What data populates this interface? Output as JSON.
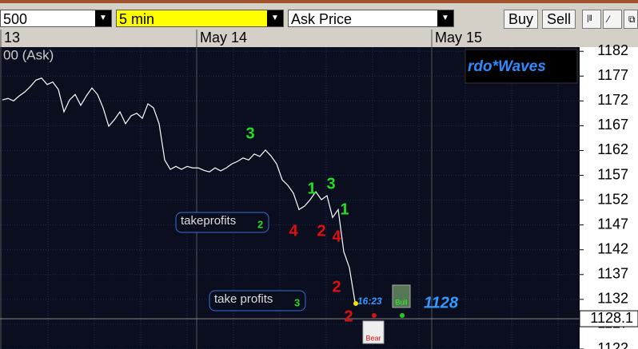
{
  "toolbar": {
    "symbol": "500",
    "interval": "5 min",
    "price_type": "Ask Price",
    "buy": "Buy",
    "sell": "Sell"
  },
  "chart_data": {
    "type": "line",
    "title": "00 (Ask)",
    "categories": [
      "13",
      null,
      null,
      null,
      null,
      null,
      null,
      null,
      null,
      null,
      null,
      null,
      null,
      null,
      null,
      null,
      null,
      null,
      null,
      null,
      null,
      null,
      null,
      null,
      null,
      null,
      null,
      null,
      null,
      null,
      null,
      null,
      null,
      null,
      null,
      "May 14",
      null,
      null,
      null,
      null,
      null,
      null,
      null,
      null,
      null,
      null,
      null,
      null,
      null,
      null,
      null,
      null,
      null,
      null,
      null,
      null,
      null,
      null,
      null,
      null,
      null,
      null,
      null,
      null,
      null,
      null,
      null,
      null,
      null,
      null,
      null,
      null,
      null,
      null,
      null,
      null,
      null,
      "May 15",
      null,
      null,
      null,
      null,
      null,
      null,
      null,
      null,
      null,
      null,
      null,
      null,
      null,
      null,
      null,
      null,
      null,
      null,
      null,
      null,
      null,
      null,
      null,
      null,
      null,
      null
    ],
    "series": [
      {
        "name": "Ask",
        "color": "#ffffff",
        "values": [
          1172.2,
          1172.5,
          1172.0,
          1173.0,
          1173.8,
          1174.9,
          1176.2,
          1176.6,
          1175.3,
          1175.8,
          1174.3,
          1169.8,
          1172.2,
          1173.3,
          1171.1,
          1173.0,
          1174.6,
          1173.3,
          1170.6,
          1166.9,
          1168.2,
          1169.8,
          1167.4,
          1169.0,
          1169.5,
          1168.5,
          1171.4,
          1170.6,
          1167.4,
          1160.1,
          1158.2,
          1158.8,
          1158.2,
          1158.8,
          1158.5,
          1158.5,
          1158.0,
          1157.7,
          1158.5,
          1157.9,
          1158.5,
          1159.3,
          1159.8,
          1160.5,
          1160.1,
          1161.3,
          1160.8,
          1162.1,
          1160.9,
          1159.3,
          1156.1,
          1155.0,
          1153.4,
          1150.1,
          1150.8,
          1152.1,
          1153.7,
          1152.1,
          1152.9,
          1148.5,
          1150.1,
          1141.6,
          1138.4,
          1131.5,
          null,
          null,
          null,
          null,
          null,
          null,
          null,
          null,
          null,
          null,
          null,
          null,
          null,
          null,
          null,
          null,
          null,
          null,
          null,
          null,
          null,
          null,
          null,
          null,
          null,
          null,
          null,
          null,
          null,
          null,
          null,
          null,
          null,
          null,
          null,
          null,
          null,
          null,
          null,
          null
        ]
      }
    ],
    "ylim": [
      1122,
      1183
    ],
    "yticks": [
      1182,
      1177,
      1172,
      1167,
      1162,
      1157,
      1152,
      1147,
      1142,
      1137,
      1132,
      1127,
      1122
    ],
    "last_price": {
      "value": 1128.1,
      "label": "1128.1"
    },
    "grid": true
  },
  "annotations": [
    {
      "text": "3",
      "color": "#22dd22"
    },
    {
      "text": "1",
      "color": "#22dd22"
    },
    {
      "text": "3",
      "color": "#22dd22"
    },
    {
      "text": "1",
      "color": "#22dd22"
    },
    {
      "text": "4",
      "color": "#e01010"
    },
    {
      "text": "2",
      "color": "#e01010"
    },
    {
      "text": "4",
      "color": "#e01010"
    },
    {
      "text": "2",
      "color": "#e01010"
    },
    {
      "text": "2",
      "color": "#e01010"
    },
    {
      "text": "16:23",
      "color": "#3399ff"
    },
    {
      "text": "1128",
      "color": "#3399ff"
    }
  ],
  "take_profits": [
    {
      "text": "takeprofits",
      "count": "2"
    },
    {
      "text": "take profits",
      "count": "3"
    }
  ],
  "indicator_name": "rdo*Waves",
  "bull_label": "Bull",
  "bear_label": "Bear"
}
